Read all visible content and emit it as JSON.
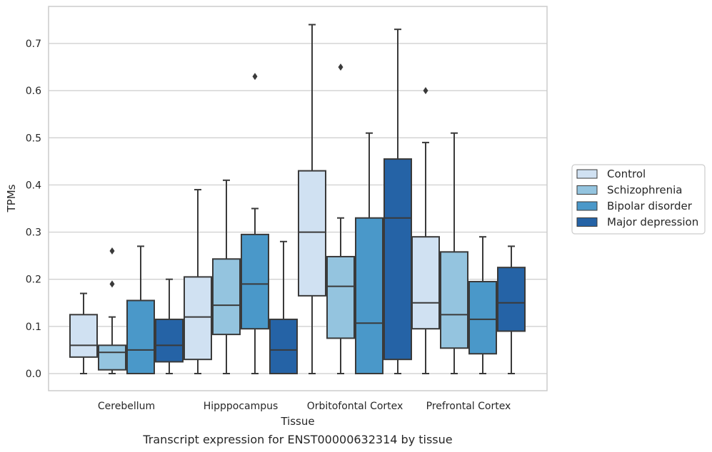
{
  "caption": "Transcript expression for ENST00000632314 by tissue",
  "chart_data": {
    "type": "box",
    "title": "",
    "xlabel": "Tissue",
    "ylabel": "TPMs",
    "ylim": [
      -0.036,
      0.78
    ],
    "yticks": [
      0.0,
      0.1,
      0.2,
      0.3,
      0.4,
      0.5,
      0.6,
      0.7
    ],
    "ytick_labels": [
      "0.0",
      "0.1",
      "0.2",
      "0.3",
      "0.4",
      "0.5",
      "0.6",
      "0.7"
    ],
    "grid": "horizontal",
    "legend_position": "right",
    "categories": [
      "Cerebellum",
      "Hipppocampus",
      "Orbitofontal Cortex",
      "Prefrontal Cortex"
    ],
    "series": [
      {
        "name": "Control",
        "color": "#d0e1f2",
        "boxes": [
          {
            "whisker_low": 0.0,
            "q1": 0.035,
            "median": 0.06,
            "q3": 0.125,
            "whisker_high": 0.17,
            "outliers": []
          },
          {
            "whisker_low": 0.0,
            "q1": 0.03,
            "median": 0.12,
            "q3": 0.205,
            "whisker_high": 0.39,
            "outliers": []
          },
          {
            "whisker_low": 0.0,
            "q1": 0.165,
            "median": 0.3,
            "q3": 0.43,
            "whisker_high": 0.74,
            "outliers": []
          },
          {
            "whisker_low": 0.0,
            "q1": 0.095,
            "median": 0.15,
            "q3": 0.29,
            "whisker_high": 0.49,
            "outliers": [
              0.6
            ]
          }
        ]
      },
      {
        "name": "Schizophrenia",
        "color": "#94c4df",
        "boxes": [
          {
            "whisker_low": 0.0,
            "q1": 0.008,
            "median": 0.045,
            "q3": 0.06,
            "whisker_high": 0.12,
            "outliers": [
              0.19,
              0.26
            ]
          },
          {
            "whisker_low": 0.0,
            "q1": 0.083,
            "median": 0.145,
            "q3": 0.243,
            "whisker_high": 0.41,
            "outliers": []
          },
          {
            "whisker_low": 0.0,
            "q1": 0.075,
            "median": 0.185,
            "q3": 0.248,
            "whisker_high": 0.33,
            "outliers": [
              0.65
            ]
          },
          {
            "whisker_low": 0.0,
            "q1": 0.054,
            "median": 0.125,
            "q3": 0.258,
            "whisker_high": 0.51,
            "outliers": []
          }
        ]
      },
      {
        "name": "Bipolar disorder",
        "color": "#4a98c9",
        "boxes": [
          {
            "whisker_low": 0.0,
            "q1": 0.0,
            "median": 0.05,
            "q3": 0.155,
            "whisker_high": 0.27,
            "outliers": []
          },
          {
            "whisker_low": 0.0,
            "q1": 0.095,
            "median": 0.19,
            "q3": 0.295,
            "whisker_high": 0.35,
            "outliers": [
              0.63
            ]
          },
          {
            "whisker_low": 0.0,
            "q1": 0.0,
            "median": 0.107,
            "q3": 0.33,
            "whisker_high": 0.51,
            "outliers": []
          },
          {
            "whisker_low": 0.0,
            "q1": 0.042,
            "median": 0.115,
            "q3": 0.195,
            "whisker_high": 0.29,
            "outliers": []
          }
        ]
      },
      {
        "name": "Major depression",
        "color": "#2563a6",
        "boxes": [
          {
            "whisker_low": 0.0,
            "q1": 0.025,
            "median": 0.06,
            "q3": 0.115,
            "whisker_high": 0.2,
            "outliers": []
          },
          {
            "whisker_low": 0.0,
            "q1": 0.0,
            "median": 0.05,
            "q3": 0.115,
            "whisker_high": 0.28,
            "outliers": []
          },
          {
            "whisker_low": 0.0,
            "q1": 0.03,
            "median": 0.33,
            "q3": 0.455,
            "whisker_high": 0.73,
            "outliers": []
          },
          {
            "whisker_low": 0.0,
            "q1": 0.09,
            "median": 0.15,
            "q3": 0.225,
            "whisker_high": 0.27,
            "outliers": []
          }
        ]
      }
    ]
  }
}
